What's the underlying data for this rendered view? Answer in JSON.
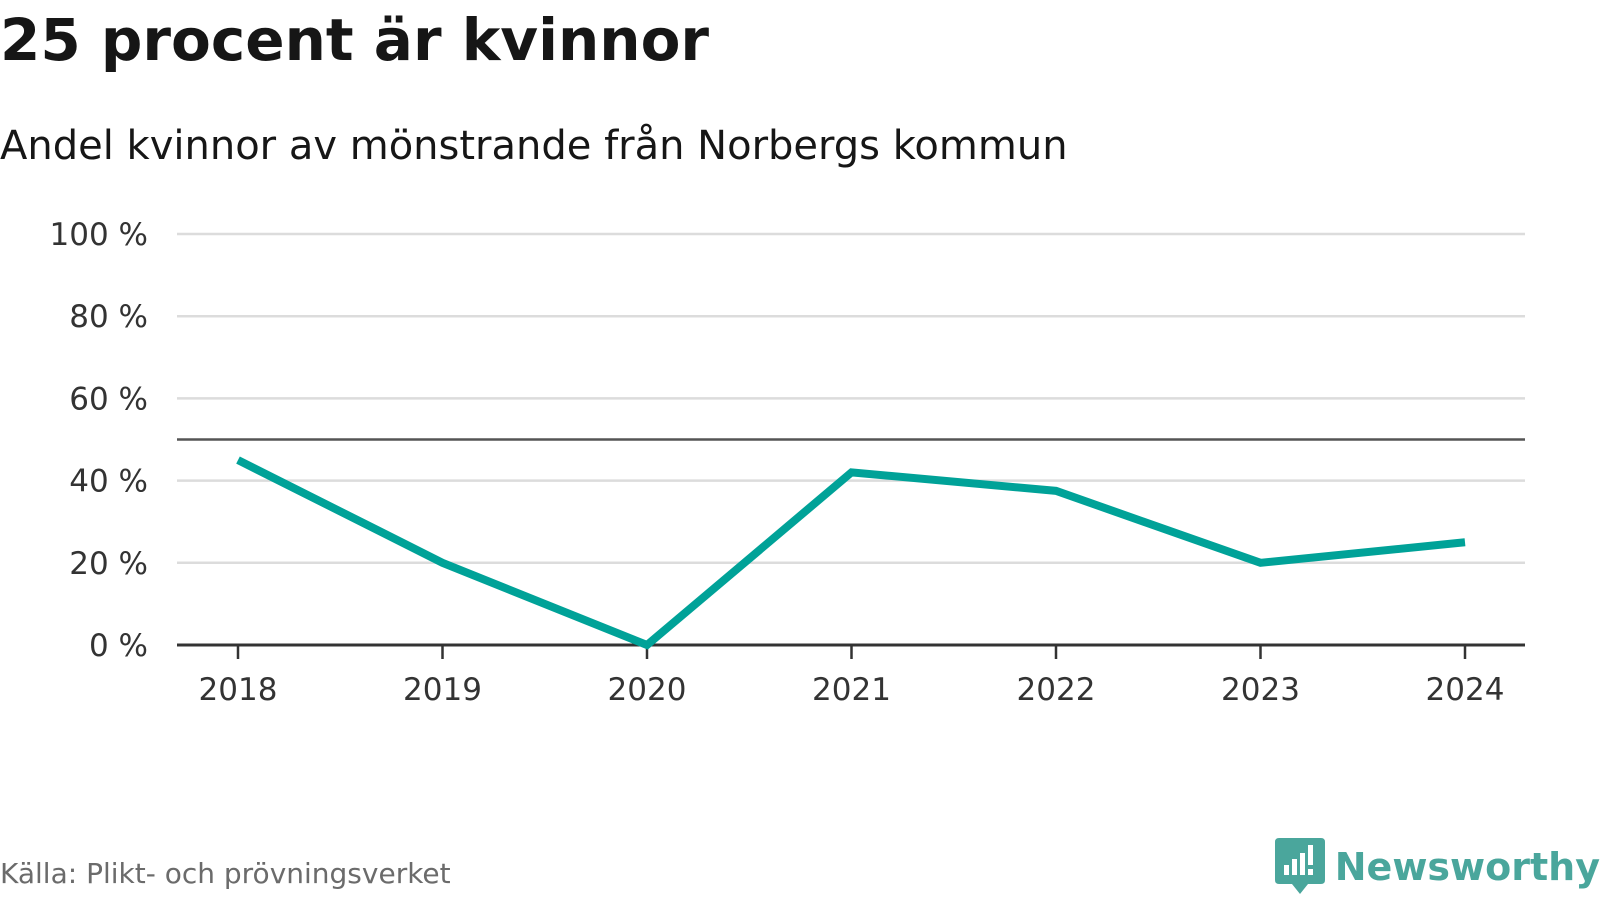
{
  "title": "25 procent är kvinnor",
  "subtitle": "Andel kvinnor av mönstrande från Norbergs kommun",
  "source": "Källa: Plikt- och prövningsverket",
  "brand": {
    "name": "Newsworthy",
    "icon": "newsworthy-logo-icon"
  },
  "colors": {
    "line": "#00a298",
    "grid": "#dcdcdc",
    "axis": "#333333",
    "reference_line": "#555555",
    "brand": "#4aa69c",
    "text": "#161616",
    "muted": "#6b6b6b"
  },
  "chart_data": {
    "type": "line",
    "title": "25 procent är kvinnor",
    "subtitle": "Andel kvinnor av mönstrande från Norbergs kommun",
    "xlabel": "",
    "ylabel": "",
    "categories": [
      "2018",
      "2019",
      "2020",
      "2021",
      "2022",
      "2023",
      "2024"
    ],
    "series": [
      {
        "name": "Andel kvinnor",
        "values": [
          45,
          20,
          0,
          42,
          37.5,
          20,
          25
        ]
      }
    ],
    "ylim": [
      0,
      100
    ],
    "yticks": [
      0,
      20,
      40,
      60,
      80,
      100
    ],
    "ytick_labels": [
      "0 %",
      "20 %",
      "40 %",
      "60 %",
      "80 %",
      "100 %"
    ],
    "reference_line": 50,
    "grid": true,
    "legend": "none"
  }
}
